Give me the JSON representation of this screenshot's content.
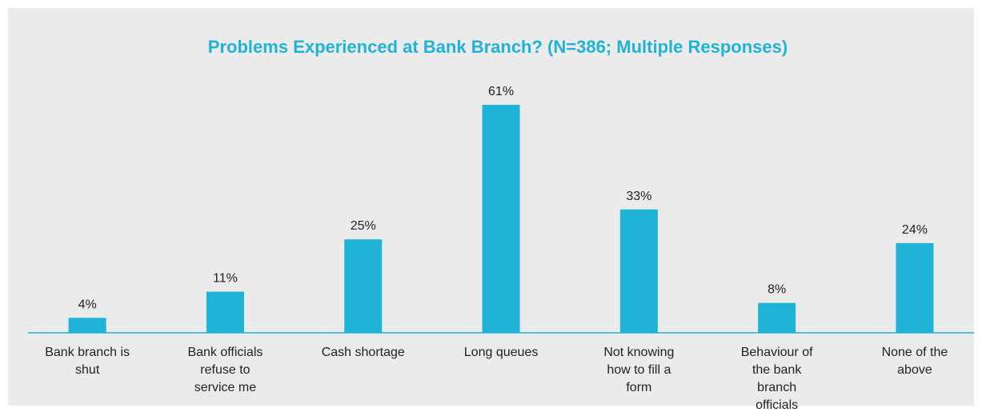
{
  "chart_data": {
    "type": "bar",
    "title": "Problems Experienced at Bank Branch? (N=386; Multiple Responses)",
    "categories": [
      "Bank branch is shut",
      "Bank officials refuse to service me",
      "Cash shortage",
      "Long queues",
      "Not knowing how to fill a form",
      "Behaviour of the bank branch officials",
      "None of the above"
    ],
    "values": [
      4,
      11,
      25,
      61,
      33,
      8,
      24
    ],
    "value_labels": [
      "4%",
      "11%",
      "25%",
      "61%",
      "33%",
      "8%",
      "24%"
    ],
    "color": "#1fb3d7"
  }
}
